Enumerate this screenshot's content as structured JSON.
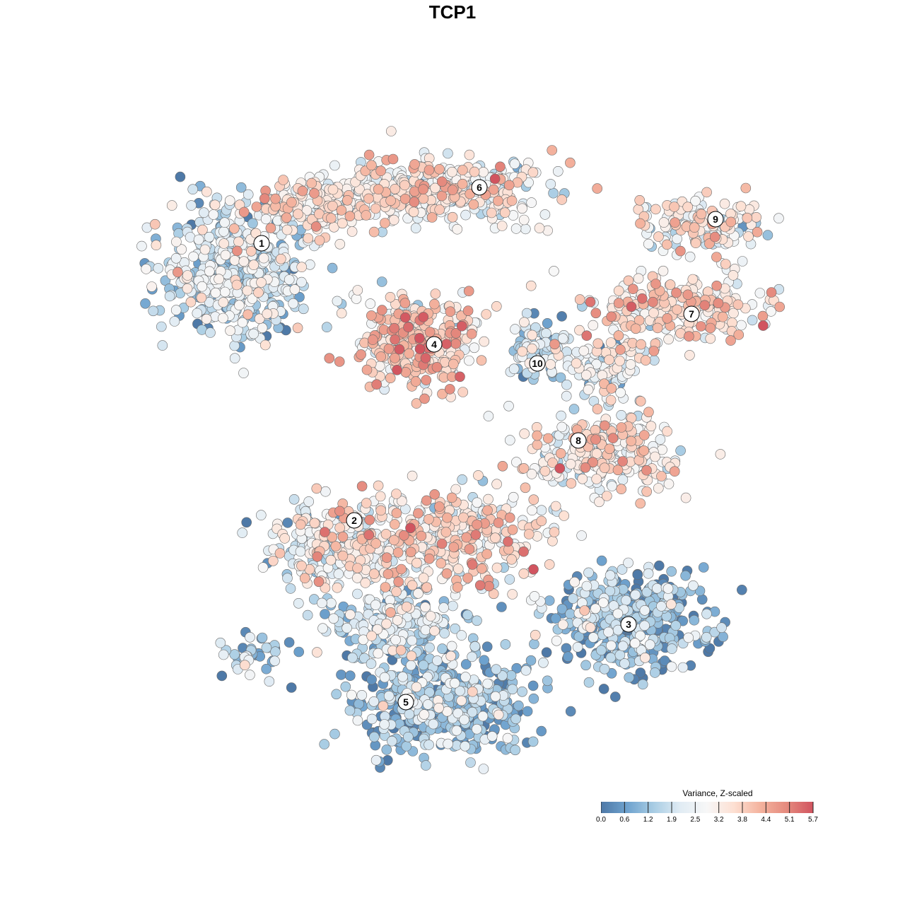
{
  "chart_data": {
    "type": "scatter",
    "title": "TCP1",
    "legend": {
      "title": "Variance, Z-scaled",
      "placement": "bottom-right",
      "ticks": [
        "0.0",
        "0.6",
        "1.2",
        "1.9",
        "2.5",
        "3.2",
        "3.8",
        "4.4",
        "5.1",
        "5.7"
      ],
      "range": [
        0.0,
        5.7
      ],
      "colors": [
        "#4e79a7",
        "#6fa3cf",
        "#a9cde4",
        "#e1ecf4",
        "#f7f7f7",
        "#fde0d3",
        "#f4b39e",
        "#e58a7e",
        "#d1545f"
      ]
    },
    "clusters": [
      {
        "label": "1",
        "level": 1.9
      },
      {
        "label": "2",
        "level": 2.6
      },
      {
        "label": "3",
        "level": 1.0
      },
      {
        "label": "4",
        "level": 3.6
      },
      {
        "label": "5",
        "level": 1.1
      },
      {
        "label": "6",
        "level": 2.9
      },
      {
        "label": "7",
        "level": 3.4
      },
      {
        "label": "8",
        "level": 3.0
      },
      {
        "label": "9",
        "level": 2.7
      },
      {
        "label": "10",
        "level": 1.7
      }
    ],
    "grid": false,
    "axes_visible": false
  }
}
